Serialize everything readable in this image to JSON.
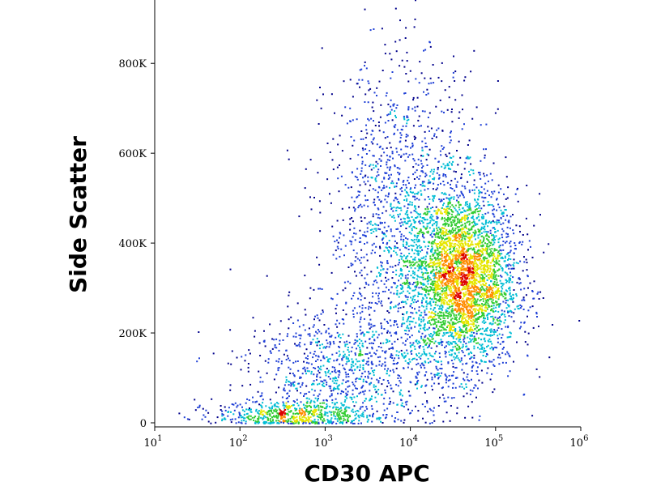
{
  "chart_data": {
    "type": "scatter",
    "subtype": "flow-cytometry-density-dot-plot",
    "xlabel": "CD30 APC",
    "ylabel": "Side Scatter",
    "x_scale": "log",
    "xlim": [
      10,
      1000000
    ],
    "ylim": [
      0,
      950000
    ],
    "x_ticks": [
      {
        "value": 10,
        "base": "10",
        "exp": "1"
      },
      {
        "value": 100,
        "base": "10",
        "exp": "2"
      },
      {
        "value": 1000,
        "base": "10",
        "exp": "3"
      },
      {
        "value": 10000,
        "base": "10",
        "exp": "4"
      },
      {
        "value": 100000,
        "base": "10",
        "exp": "5"
      },
      {
        "value": 1000000,
        "base": "10",
        "exp": "6"
      }
    ],
    "y_ticks": [
      {
        "value": 0,
        "label": "0"
      },
      {
        "value": 200000,
        "label": "200K"
      },
      {
        "value": 400000,
        "label": "400K"
      },
      {
        "value": 600000,
        "label": "600K"
      },
      {
        "value": 800000,
        "label": "800K"
      }
    ],
    "grid": false,
    "density_colors": [
      "#00008b",
      "#1e3fd6",
      "#00bcd4",
      "#33cc33",
      "#e6e600",
      "#ff8c00",
      "#dd0000"
    ],
    "populations": [
      {
        "x_center": 40000,
        "y_center": 320000,
        "x_spread_log": 0.32,
        "y_spread": 100000,
        "share": 0.55
      },
      {
        "x_center": 8000,
        "y_center": 450000,
        "x_spread_log": 0.45,
        "y_spread": 180000,
        "share": 0.22
      },
      {
        "x_center": 1500,
        "y_center": 120000,
        "x_spread_log": 0.55,
        "y_spread": 70000,
        "share": 0.14
      },
      {
        "x_center": 400,
        "y_center": 20000,
        "x_spread_log": 0.45,
        "y_spread": 15000,
        "share": 0.09
      }
    ]
  }
}
